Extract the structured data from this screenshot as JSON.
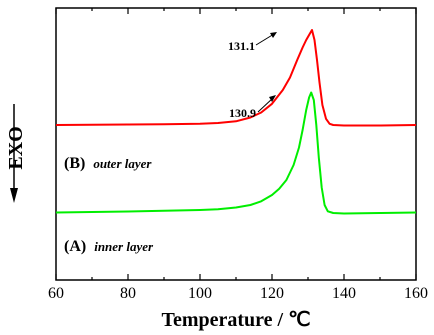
{
  "chart_data": {
    "type": "line",
    "xlabel": "Temperature / ℃",
    "ylabel": "EXO",
    "xlim": [
      60,
      160
    ],
    "x_ticks": [
      60,
      80,
      100,
      120,
      140,
      160
    ],
    "y_ticks_shown": false,
    "grid": false,
    "series": [
      {
        "name": "outer layer",
        "label_prefix": "(B)",
        "color": "#ff0000",
        "peak_label": "131.1",
        "points": [
          [
            60,
            0.62
          ],
          [
            70,
            0.621
          ],
          [
            80,
            0.622
          ],
          [
            90,
            0.623
          ],
          [
            100,
            0.625
          ],
          [
            105,
            0.628
          ],
          [
            110,
            0.635
          ],
          [
            114,
            0.65
          ],
          [
            117,
            0.67
          ],
          [
            120,
            0.705
          ],
          [
            123,
            0.76
          ],
          [
            125,
            0.81
          ],
          [
            127,
            0.88
          ],
          [
            128.5,
            0.93
          ],
          [
            129.5,
            0.96
          ],
          [
            130.5,
            0.985
          ],
          [
            131.1,
            1.0
          ],
          [
            131.8,
            0.96
          ],
          [
            132.5,
            0.88
          ],
          [
            133.2,
            0.79
          ],
          [
            134,
            0.7
          ],
          [
            135,
            0.645
          ],
          [
            136,
            0.625
          ],
          [
            137,
            0.62
          ],
          [
            140,
            0.618
          ],
          [
            150,
            0.618
          ],
          [
            160,
            0.62
          ]
        ]
      },
      {
        "name": "inner layer",
        "label_prefix": "(A)",
        "color": "#00ee00",
        "peak_label": "130.9",
        "points": [
          [
            60,
            0.27
          ],
          [
            70,
            0.272
          ],
          [
            80,
            0.274
          ],
          [
            90,
            0.277
          ],
          [
            100,
            0.28
          ],
          [
            105,
            0.283
          ],
          [
            110,
            0.29
          ],
          [
            114,
            0.3
          ],
          [
            117,
            0.315
          ],
          [
            120,
            0.34
          ],
          [
            122,
            0.365
          ],
          [
            124,
            0.4
          ],
          [
            126,
            0.46
          ],
          [
            127.5,
            0.53
          ],
          [
            128.5,
            0.6
          ],
          [
            129.5,
            0.68
          ],
          [
            130.3,
            0.73
          ],
          [
            130.9,
            0.75
          ],
          [
            131.6,
            0.72
          ],
          [
            132.3,
            0.62
          ],
          [
            133,
            0.49
          ],
          [
            133.8,
            0.37
          ],
          [
            134.6,
            0.3
          ],
          [
            135.5,
            0.275
          ],
          [
            137,
            0.268
          ],
          [
            140,
            0.266
          ],
          [
            150,
            0.268
          ],
          [
            160,
            0.27
          ]
        ]
      }
    ],
    "annotations": [
      {
        "text": "131.1",
        "x": 131.1,
        "y": 1.0
      },
      {
        "text": "130.9",
        "x": 130.9,
        "y": 0.75
      }
    ]
  },
  "labels": {
    "series_b_prefix": "(B)",
    "series_b_name": "outer layer",
    "series_a_prefix": "(A)",
    "series_a_name": "inner layer",
    "peak_b": "131.1",
    "peak_a": "130.9",
    "ylabel": "EXO",
    "xlabel": "Temperature / ℃",
    "ticks": [
      "60",
      "80",
      "100",
      "120",
      "140",
      "160"
    ]
  }
}
